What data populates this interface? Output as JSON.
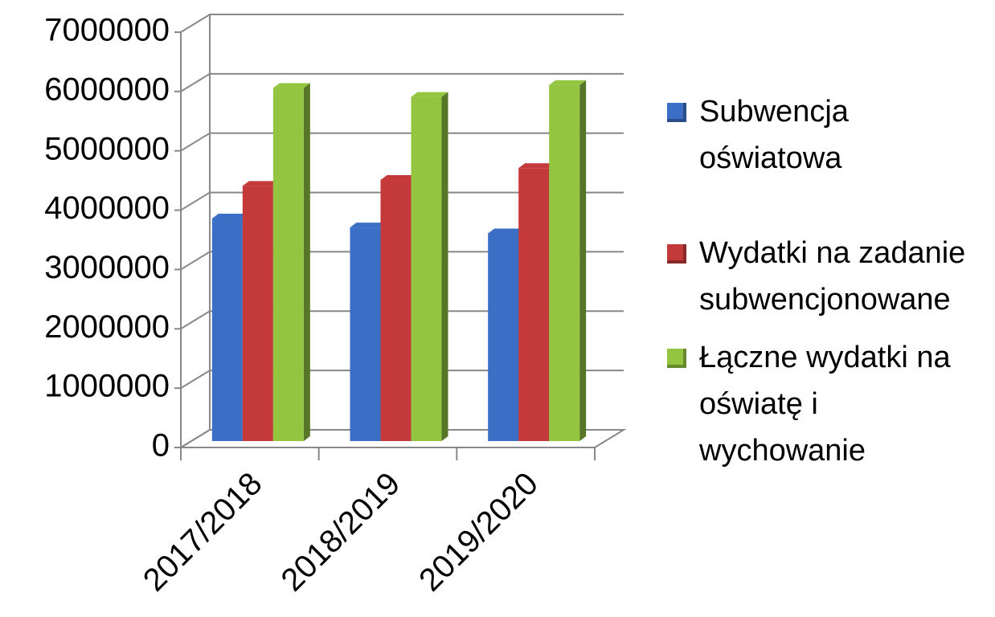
{
  "chart_data": {
    "type": "bar3d",
    "categories": [
      "2017/2018",
      "2018/2019",
      "2019/2020"
    ],
    "series": [
      {
        "name": "Subwencja oświatowa",
        "color": "#3b6fc5",
        "values": [
          3750000,
          3600000,
          3500000
        ]
      },
      {
        "name": "Wydatki na zadanie subwencjonowane",
        "color": "#c4393a",
        "values": [
          4300000,
          4400000,
          4600000
        ]
      },
      {
        "name": "Łączne wydatki na oświatę i wychowanie",
        "color": "#93c541",
        "values": [
          5950000,
          5800000,
          6000000
        ]
      }
    ],
    "ylim": [
      0,
      7000000
    ],
    "yticks": [
      0,
      1000000,
      2000000,
      3000000,
      4000000,
      5000000,
      6000000,
      7000000
    ],
    "grid": true,
    "legend": "right"
  }
}
